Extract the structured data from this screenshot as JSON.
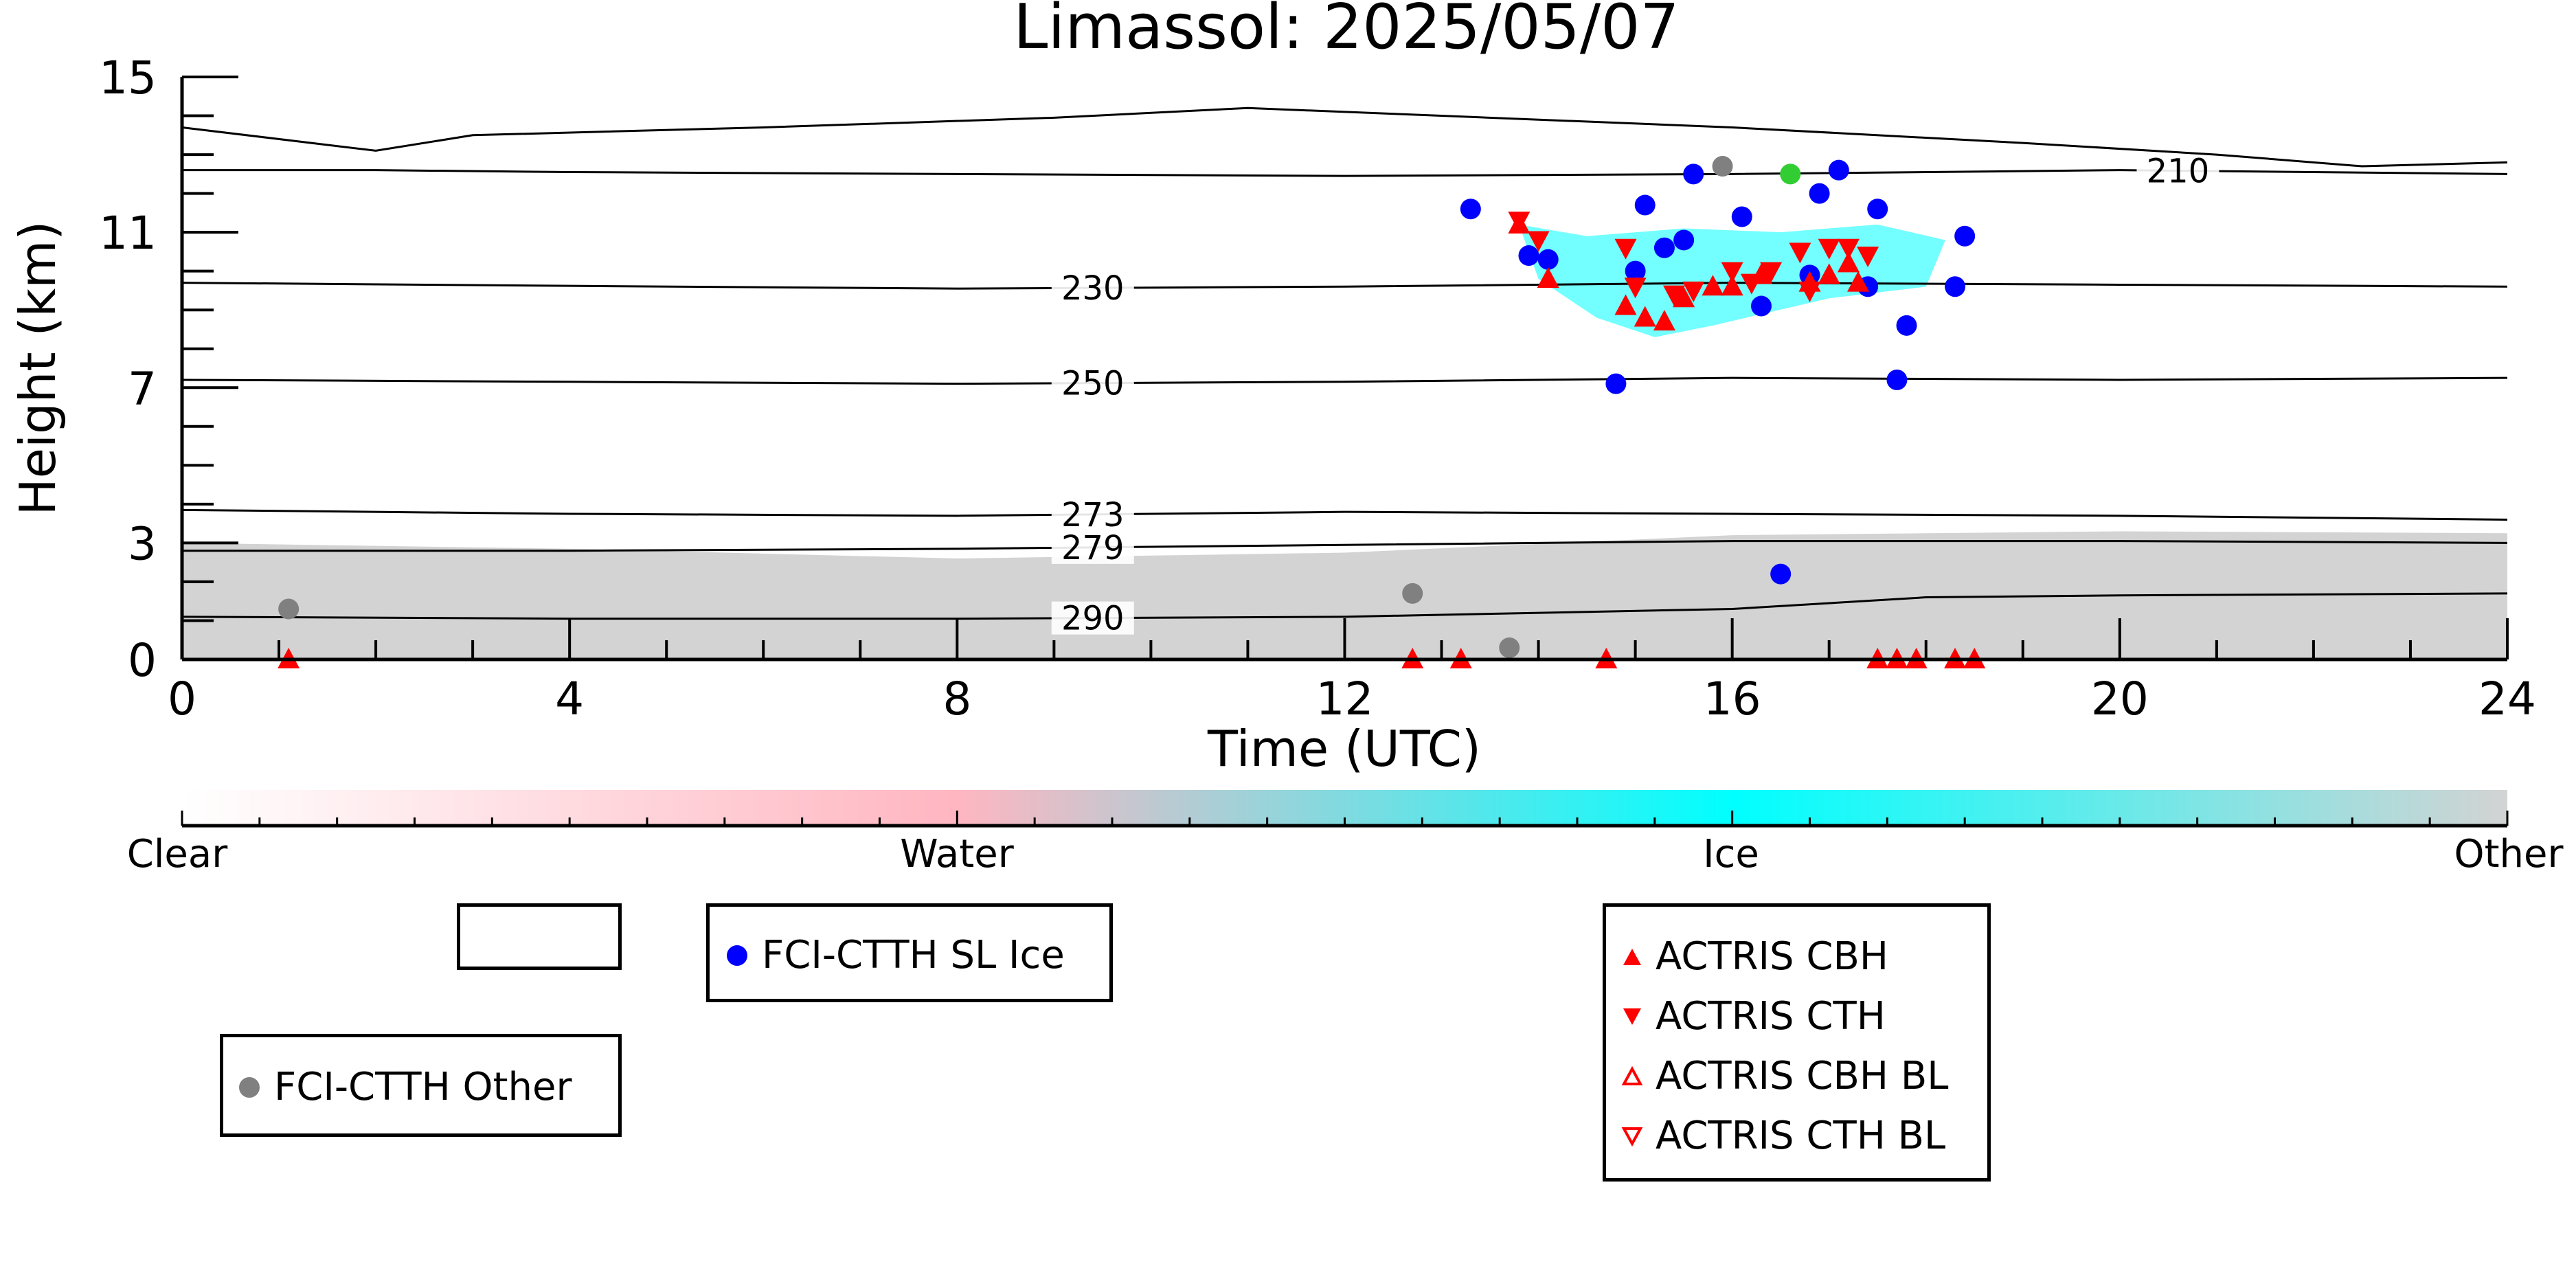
{
  "chart_data": {
    "type": "scatter",
    "title": "Limassol: 2025/05/07",
    "xlabel": "Time (UTC)",
    "ylabel": "Height (km)",
    "xlim": [
      0,
      24
    ],
    "ylim": [
      0,
      15
    ],
    "xticks": [
      0,
      4,
      8,
      12,
      16,
      20,
      24
    ],
    "yticks": [
      0,
      3,
      7,
      11,
      15
    ],
    "grid": false,
    "colorbar": {
      "labels": [
        "Clear",
        "Water",
        "Ice",
        "Other"
      ],
      "colors": [
        "#ffffff",
        "#ffb6c1",
        "#00ffff",
        "#d3d3d3"
      ]
    },
    "temperature_contours": [
      {
        "label": "210",
        "label_x": 20.6,
        "points": [
          [
            0,
            12.6
          ],
          [
            2,
            12.6
          ],
          [
            4,
            12.55
          ],
          [
            8,
            12.5
          ],
          [
            12,
            12.45
          ],
          [
            16,
            12.5
          ],
          [
            20,
            12.6
          ],
          [
            24,
            12.5
          ]
        ]
      },
      {
        "label": "230",
        "label_x": 9.4,
        "points": [
          [
            0,
            9.7
          ],
          [
            4,
            9.62
          ],
          [
            8,
            9.55
          ],
          [
            12,
            9.6
          ],
          [
            16,
            9.7
          ],
          [
            20,
            9.65
          ],
          [
            24,
            9.6
          ]
        ]
      },
      {
        "label": "250",
        "label_x": 9.4,
        "points": [
          [
            0,
            7.2
          ],
          [
            4,
            7.15
          ],
          [
            8,
            7.1
          ],
          [
            12,
            7.15
          ],
          [
            16,
            7.25
          ],
          [
            20,
            7.2
          ],
          [
            24,
            7.25
          ]
        ]
      },
      {
        "label": "273",
        "label_x": 9.4,
        "points": [
          [
            0,
            3.85
          ],
          [
            4,
            3.75
          ],
          [
            8,
            3.7
          ],
          [
            12,
            3.8
          ],
          [
            16,
            3.75
          ],
          [
            20,
            3.7
          ],
          [
            24,
            3.6
          ]
        ]
      },
      {
        "label": "279",
        "label_x": 9.4,
        "points": [
          [
            0,
            2.8
          ],
          [
            4,
            2.8
          ],
          [
            8,
            2.85
          ],
          [
            12,
            2.95
          ],
          [
            16,
            3.05
          ],
          [
            20,
            3.05
          ],
          [
            24,
            3.0
          ]
        ]
      },
      {
        "label": "290",
        "label_x": 9.4,
        "points": [
          [
            0,
            1.1
          ],
          [
            4,
            1.05
          ],
          [
            8,
            1.05
          ],
          [
            12,
            1.1
          ],
          [
            16,
            1.3
          ],
          [
            18,
            1.6
          ],
          [
            20,
            1.65
          ],
          [
            24,
            1.7
          ]
        ]
      }
    ],
    "tropopause_contour": [
      [
        0,
        13.7
      ],
      [
        2,
        13.1
      ],
      [
        3,
        13.5
      ],
      [
        6,
        13.7
      ],
      [
        9,
        13.95
      ],
      [
        11,
        14.2
      ],
      [
        13,
        14.0
      ],
      [
        16,
        13.7
      ],
      [
        19,
        13.3
      ],
      [
        21,
        13.0
      ],
      [
        22.5,
        12.7
      ],
      [
        24,
        12.8
      ]
    ],
    "series": [
      {
        "name": "FCI-CTTH SL Ice",
        "marker": "circle",
        "color": "#0000ff",
        "points": [
          [
            13.3,
            11.6
          ],
          [
            13.9,
            10.4
          ],
          [
            14.1,
            10.3
          ],
          [
            14.8,
            7.1
          ],
          [
            15.0,
            10.0
          ],
          [
            15.1,
            11.7
          ],
          [
            15.3,
            10.6
          ],
          [
            15.5,
            10.8
          ],
          [
            15.6,
            12.5
          ],
          [
            16.1,
            11.4
          ],
          [
            16.3,
            9.1
          ],
          [
            16.5,
            2.2
          ],
          [
            16.8,
            9.9
          ],
          [
            16.9,
            12.0
          ],
          [
            17.1,
            12.6
          ],
          [
            17.4,
            9.6
          ],
          [
            17.5,
            11.6
          ],
          [
            17.7,
            7.2
          ],
          [
            17.8,
            8.6
          ],
          [
            18.3,
            9.6
          ],
          [
            18.4,
            10.9
          ]
        ]
      },
      {
        "name": "FCI-CTTH Other",
        "marker": "circle",
        "color": "#808080",
        "points": [
          [
            1.1,
            1.3
          ],
          [
            12.7,
            1.7
          ],
          [
            13.7,
            0.3
          ],
          [
            15.9,
            12.7
          ]
        ]
      },
      {
        "name": "",
        "marker": "circle",
        "color": "#32cd32",
        "points": [
          [
            16.6,
            12.5
          ]
        ]
      },
      {
        "name": "ACTRIS CBH",
        "marker": "triangle-up",
        "color": "#ff0000",
        "points": [
          [
            13.8,
            11.2
          ],
          [
            14.1,
            9.8
          ],
          [
            14.9,
            9.1
          ],
          [
            15.1,
            8.8
          ],
          [
            15.3,
            8.7
          ],
          [
            15.5,
            9.3
          ],
          [
            15.8,
            9.6
          ],
          [
            16.0,
            9.6
          ],
          [
            16.3,
            9.9
          ],
          [
            16.8,
            9.7
          ],
          [
            17.0,
            9.9
          ],
          [
            17.2,
            10.2
          ],
          [
            17.3,
            9.7
          ],
          [
            1.1,
            0.0
          ],
          [
            12.7,
            0.0
          ],
          [
            13.2,
            0.0
          ],
          [
            14.7,
            0.0
          ],
          [
            17.5,
            0.0
          ],
          [
            17.7,
            0.0
          ],
          [
            17.9,
            0.0
          ],
          [
            18.3,
            0.0
          ],
          [
            18.5,
            0.0
          ]
        ]
      },
      {
        "name": "ACTRIS CTH",
        "marker": "triangle-down",
        "color": "#ff0000",
        "points": [
          [
            13.8,
            11.3
          ],
          [
            14.0,
            10.8
          ],
          [
            14.9,
            10.6
          ],
          [
            15.0,
            9.6
          ],
          [
            15.4,
            9.4
          ],
          [
            15.6,
            9.5
          ],
          [
            16.0,
            10.0
          ],
          [
            16.2,
            9.7
          ],
          [
            16.4,
            10.0
          ],
          [
            16.7,
            10.5
          ],
          [
            16.8,
            9.5
          ],
          [
            17.0,
            10.6
          ],
          [
            17.2,
            10.6
          ],
          [
            17.4,
            10.4
          ]
        ]
      },
      {
        "name": "ACTRIS CBH BL",
        "marker": "triangle-up-open",
        "color": "#ff0000",
        "points": []
      },
      {
        "name": "ACTRIS CTH BL",
        "marker": "triangle-down-open",
        "color": "#ff0000",
        "points": []
      }
    ],
    "legend": {
      "blank_box": "",
      "sl_ice": "FCI-CTTH SL Ice",
      "other": "FCI-CTTH Other",
      "actris": [
        "ACTRIS CBH",
        "ACTRIS CTH",
        "ACTRIS CBH BL",
        "ACTRIS CTH BL"
      ]
    }
  }
}
